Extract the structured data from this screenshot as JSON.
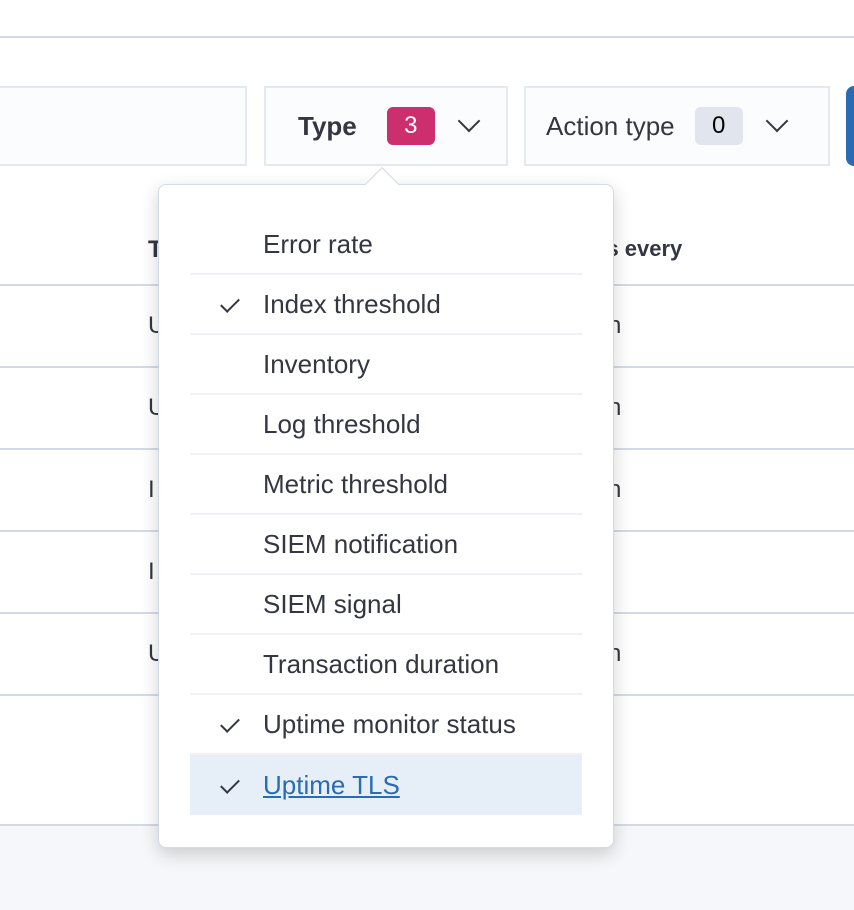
{
  "filters": {
    "type": {
      "label": "Type",
      "count": "3"
    },
    "action_type": {
      "label": "Action type",
      "count": "0"
    }
  },
  "table_fragments": {
    "header_left": "T",
    "header_right": "ns every",
    "rows": [
      {
        "left": "U",
        "right": "n"
      },
      {
        "left": "U",
        "right": "n"
      },
      {
        "left": "I",
        "right": "n"
      },
      {
        "left": "I",
        "right": ""
      },
      {
        "left": "U",
        "right": "n"
      }
    ]
  },
  "type_options": [
    {
      "label": "Error rate",
      "checked": false
    },
    {
      "label": "Index threshold",
      "checked": true
    },
    {
      "label": "Inventory",
      "checked": false
    },
    {
      "label": "Log threshold",
      "checked": false
    },
    {
      "label": "Metric threshold",
      "checked": false
    },
    {
      "label": "SIEM notification",
      "checked": false
    },
    {
      "label": "SIEM signal",
      "checked": false
    },
    {
      "label": "Transaction duration",
      "checked": false
    },
    {
      "label": "Uptime monitor status",
      "checked": true
    },
    {
      "label": "Uptime TLS",
      "checked": true,
      "highlighted": true
    }
  ],
  "colors": {
    "badge_active": "#cc2e6e",
    "accent": "#2a6cb3",
    "highlight": "#e6eef7"
  }
}
